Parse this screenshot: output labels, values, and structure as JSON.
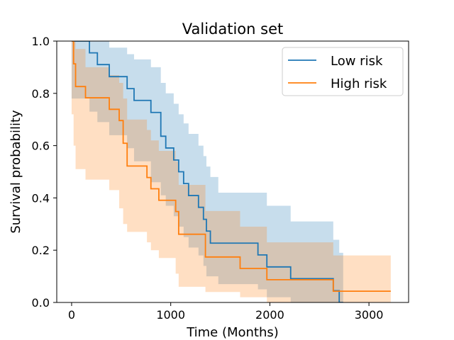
{
  "chart_data": {
    "type": "line",
    "subtype": "kaplan-meier-step",
    "title": "Validation set",
    "xlabel": "Time (Months)",
    "ylabel": "Survival probability",
    "xlim": [
      -150,
      3400
    ],
    "ylim": [
      0,
      1
    ],
    "xticks": [
      0,
      1000,
      2000,
      3000
    ],
    "xtick_labels": [
      "0",
      "1000",
      "2000",
      "3000"
    ],
    "yticks": [
      0,
      0.2,
      0.4,
      0.6,
      0.8,
      1.0
    ],
    "ytick_labels": [
      "0.0",
      "0.2",
      "0.4",
      "0.6",
      "0.8",
      "1.0"
    ],
    "grid": false,
    "legend_position": "top-right",
    "series": [
      {
        "name": "Low risk",
        "color": "#1f77b4",
        "band_color": "#1f77b4",
        "band_opacity": 0.25,
        "x": [
          0,
          180,
          260,
          380,
          560,
          630,
          800,
          900,
          950,
          1030,
          1080,
          1130,
          1180,
          1280,
          1330,
          1360,
          1400,
          1480,
          1880,
          1970,
          2210,
          2640,
          2700,
          2740
        ],
        "y": [
          1.0,
          0.955,
          0.91,
          0.864,
          0.818,
          0.773,
          0.727,
          0.636,
          0.591,
          0.545,
          0.5,
          0.455,
          0.409,
          0.364,
          0.318,
          0.273,
          0.227,
          0.227,
          0.182,
          0.136,
          0.091,
          0.045,
          0.0,
          0.0
        ],
        "upper": [
          1.0,
          1.0,
          1.0,
          0.975,
          0.95,
          0.93,
          0.9,
          0.84,
          0.8,
          0.76,
          0.72,
          0.685,
          0.645,
          0.6,
          0.56,
          0.52,
          0.48,
          0.42,
          0.42,
          0.37,
          0.31,
          0.24,
          0.19,
          0.19
        ],
        "lower": [
          0.82,
          0.78,
          0.73,
          0.69,
          0.64,
          0.59,
          0.54,
          0.46,
          0.41,
          0.37,
          0.33,
          0.29,
          0.25,
          0.21,
          0.18,
          0.14,
          0.1,
          0.1,
          0.07,
          0.05,
          0.02,
          0.0,
          0.0,
          0.0
        ]
      },
      {
        "name": "High risk",
        "color": "#ff7f0e",
        "band_color": "#ff7f0e",
        "band_opacity": 0.25,
        "x": [
          0,
          20,
          40,
          140,
          380,
          480,
          520,
          560,
          760,
          800,
          880,
          1050,
          1080,
          1350,
          1700,
          1970,
          2640,
          2700,
          3220
        ],
        "y": [
          1.0,
          0.913,
          0.826,
          0.783,
          0.739,
          0.696,
          0.609,
          0.522,
          0.478,
          0.435,
          0.391,
          0.348,
          0.261,
          0.174,
          0.13,
          0.087,
          0.043,
          0.043,
          0.043
        ],
        "upper": [
          1.0,
          1.0,
          0.97,
          0.9,
          0.87,
          0.84,
          0.78,
          0.7,
          0.66,
          0.62,
          0.58,
          0.54,
          0.45,
          0.35,
          0.29,
          0.23,
          0.18,
          0.18,
          0.18
        ],
        "lower": [
          0.83,
          0.72,
          0.6,
          0.51,
          0.47,
          0.43,
          0.36,
          0.3,
          0.27,
          0.23,
          0.2,
          0.17,
          0.11,
          0.06,
          0.04,
          0.02,
          0.0,
          0.0,
          0.0
        ]
      }
    ]
  }
}
